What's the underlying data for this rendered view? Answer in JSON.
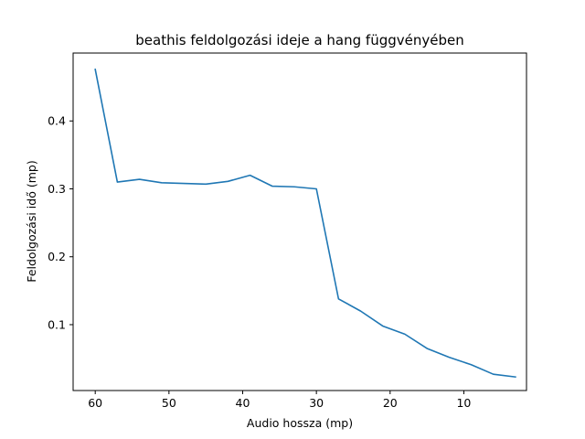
{
  "chart_data": {
    "type": "line",
    "title": "beathis feldolgozási ideje a hang függvényében",
    "xlabel": "Audio hossza (mp)",
    "ylabel": "Feldolgozási idő (mp)",
    "x_inverted": true,
    "xlim": [
      63,
      1.5
    ],
    "ylim": [
      0.003,
      0.5
    ],
    "grid": false,
    "xticks": [
      60,
      50,
      40,
      30,
      20,
      10
    ],
    "xtick_labels": [
      "60",
      "50",
      "40",
      "30",
      "20",
      "10"
    ],
    "yticks": [
      0.1,
      0.2,
      0.3,
      0.4
    ],
    "ytick_labels": [
      "0.1",
      "0.2",
      "0.3",
      "0.4"
    ],
    "series": [
      {
        "color": "#1f77b4",
        "x": [
          60,
          57,
          54,
          51,
          48,
          45,
          42,
          39,
          36,
          33,
          30,
          27,
          24,
          21,
          18,
          15,
          12,
          9,
          6,
          3
        ],
        "y": [
          0.476,
          0.31,
          0.314,
          0.309,
          0.308,
          0.307,
          0.311,
          0.32,
          0.304,
          0.303,
          0.3,
          0.138,
          0.12,
          0.098,
          0.086,
          0.065,
          0.052,
          0.041,
          0.027,
          0.023
        ]
      }
    ]
  }
}
